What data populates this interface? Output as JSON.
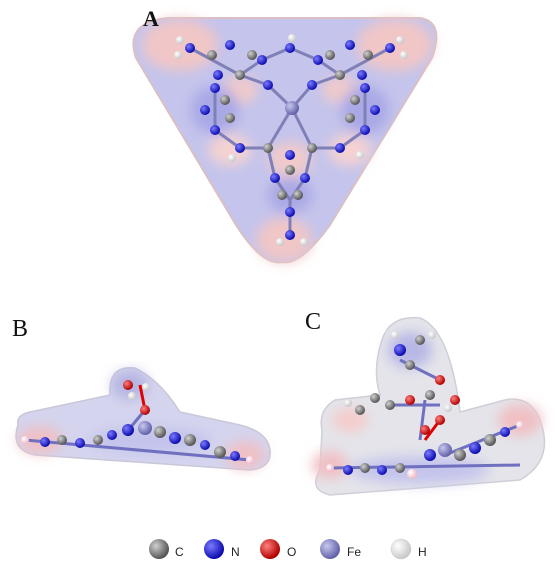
{
  "panels": {
    "a": {
      "label": "A"
    },
    "b": {
      "label": "B"
    },
    "c": {
      "label": "C"
    }
  },
  "legend": [
    {
      "symbol": "C",
      "name": "carbon",
      "color": "#6f6f6f"
    },
    {
      "symbol": "N",
      "name": "nitrogen",
      "color": "#1212e0"
    },
    {
      "symbol": "O",
      "name": "oxygen",
      "color": "#e00000"
    },
    {
      "symbol": "Fe",
      "name": "iron",
      "color": "#8a89c9"
    },
    {
      "symbol": "H",
      "name": "hydrogen",
      "color": "#f4f4f4"
    }
  ],
  "colors": {
    "surface_blue": "#a9a9e6",
    "surface_red": "#eeb4b4",
    "surface_gray": "#d8d8d8",
    "bond": "#8888aa",
    "oxygen_bond": "#e00000"
  }
}
